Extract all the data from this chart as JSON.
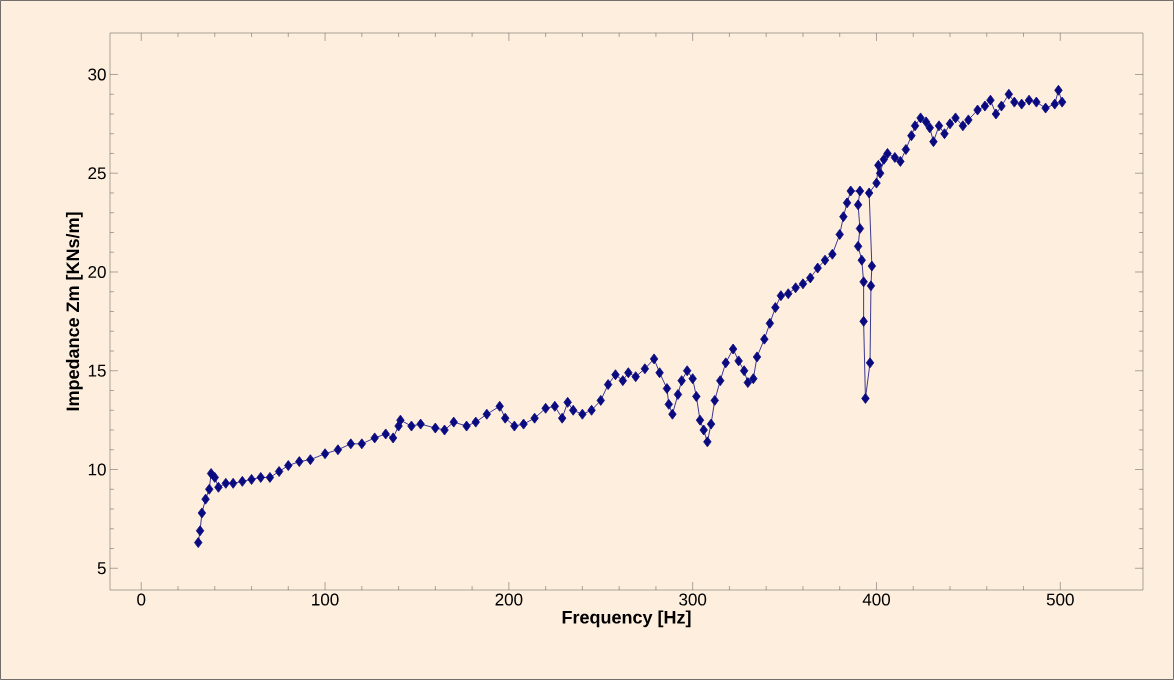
{
  "chart_data": {
    "type": "line",
    "xlabel": "Frequency [Hz]",
    "ylabel": "Impedance Zm [KNs/m]",
    "x": [
      31,
      32,
      33,
      35,
      37,
      38,
      40,
      42,
      46,
      50,
      55,
      60,
      65,
      70,
      75,
      80,
      86,
      92,
      100,
      107,
      114,
      120,
      127,
      133,
      137,
      140,
      141,
      147,
      152,
      160,
      165,
      170,
      177,
      182,
      188,
      195,
      198,
      203,
      208,
      214,
      220,
      225,
      229,
      232,
      235,
      240,
      245,
      250,
      254,
      258,
      262,
      265,
      269,
      274,
      279,
      282,
      286,
      287,
      289,
      292,
      294,
      297,
      300,
      302,
      304,
      306,
      308,
      310,
      312,
      315,
      318,
      322,
      325,
      328,
      330,
      333,
      335,
      339,
      342,
      345,
      348,
      352,
      356,
      360,
      364,
      368,
      372,
      376,
      380,
      382,
      384,
      386,
      391,
      390,
      391,
      390,
      392,
      393,
      393,
      394,
      396.5,
      397,
      397.5,
      396,
      400,
      401,
      402,
      404,
      406,
      410,
      413,
      416,
      419,
      421,
      424,
      427,
      429,
      431,
      434,
      437,
      440,
      443,
      447,
      450,
      455,
      459,
      462,
      465,
      468,
      472,
      475,
      479,
      483,
      487,
      492,
      497,
      499,
      501
    ],
    "values": [
      6.3,
      6.9,
      7.8,
      8.5,
      9.0,
      9.8,
      9.6,
      9.1,
      9.3,
      9.3,
      9.4,
      9.5,
      9.6,
      9.6,
      9.9,
      10.2,
      10.4,
      10.5,
      10.8,
      11.0,
      11.3,
      11.3,
      11.6,
      11.8,
      11.6,
      12.2,
      12.5,
      12.2,
      12.3,
      12.1,
      12.0,
      12.4,
      12.2,
      12.4,
      12.8,
      13.2,
      12.6,
      12.2,
      12.3,
      12.6,
      13.1,
      13.2,
      12.6,
      13.4,
      13.0,
      12.8,
      13.0,
      13.5,
      14.3,
      14.8,
      14.5,
      14.9,
      14.7,
      15.1,
      15.6,
      14.9,
      14.1,
      13.3,
      12.8,
      13.8,
      14.5,
      15.0,
      14.6,
      13.7,
      12.5,
      12.0,
      11.4,
      12.3,
      13.5,
      14.5,
      15.4,
      16.1,
      15.5,
      15.0,
      14.4,
      14.6,
      15.7,
      16.6,
      17.4,
      18.2,
      18.8,
      18.9,
      19.2,
      19.4,
      19.7,
      20.2,
      20.6,
      20.9,
      21.9,
      22.8,
      23.5,
      24.1,
      24.1,
      23.4,
      22.2,
      21.3,
      20.6,
      19.5,
      17.5,
      13.6,
      15.4,
      19.3,
      20.3,
      24.0,
      24.5,
      25.4,
      25.0,
      25.7,
      26.0,
      25.8,
      25.6,
      26.2,
      26.9,
      27.4,
      27.8,
      27.6,
      27.3,
      26.6,
      27.4,
      27.0,
      27.5,
      27.8,
      27.4,
      27.7,
      28.2,
      28.4,
      28.7,
      28.0,
      28.4,
      29.0,
      28.6,
      28.5,
      28.7,
      28.6,
      28.3,
      28.5,
      29.2,
      28.6
    ],
    "color": "#0a0a80",
    "marker": "diamond",
    "line_style": "solid",
    "xlim": [
      -17,
      545
    ],
    "ylim": [
      3.9,
      32.1
    ],
    "xticks": [
      0,
      100,
      200,
      300,
      400,
      500
    ],
    "yticks": [
      5,
      10,
      15,
      20,
      25,
      30
    ]
  }
}
